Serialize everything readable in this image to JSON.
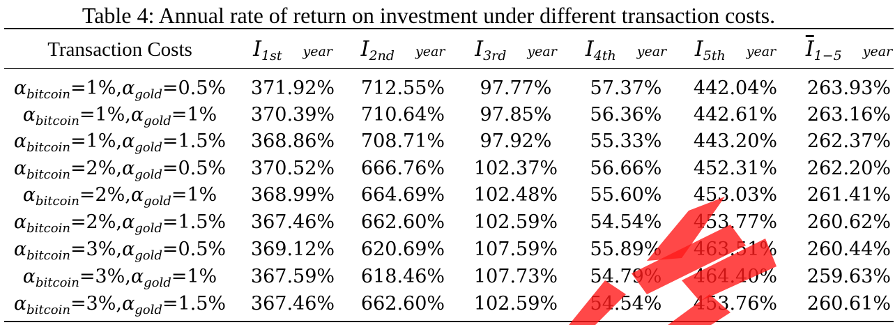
{
  "caption": "Table 4: Annual rate of return on investment under different transaction costs.",
  "header": {
    "col0": "Transaction Costs",
    "cols": [
      {
        "sym": "I",
        "sub": "1st",
        "unit": "year",
        "bar": false
      },
      {
        "sym": "I",
        "sub": "2nd",
        "unit": "year",
        "bar": false
      },
      {
        "sym": "I",
        "sub": "3rd",
        "unit": "year",
        "bar": false
      },
      {
        "sym": "I",
        "sub": "4th",
        "unit": "year",
        "bar": false
      },
      {
        "sym": "I",
        "sub": "5th",
        "unit": "year",
        "bar": false
      },
      {
        "sym": "I",
        "sub": "1−5",
        "unit": "year",
        "bar": true
      }
    ]
  },
  "rows": [
    {
      "a_sym": "α",
      "sub1": "bitcoin",
      "v1": "=1%,",
      "sub2": "gold",
      "v2": "=0.5%",
      "values": [
        "371.92%",
        "712.55%",
        "97.77%",
        "57.37%",
        "442.04%",
        "263.93%"
      ]
    },
    {
      "a_sym": "α",
      "sub1": "bitcoin",
      "v1": "=1%,",
      "sub2": "gold",
      "v2": "=1%",
      "values": [
        "370.39%",
        "710.64%",
        "97.85%",
        "56.36%",
        "442.61%",
        "263.16%"
      ]
    },
    {
      "a_sym": "α",
      "sub1": "bitcoin",
      "v1": "=1%,",
      "sub2": "gold",
      "v2": "=1.5%",
      "values": [
        "368.86%",
        "708.71%",
        "97.92%",
        "55.33%",
        "443.20%",
        "262.37%"
      ]
    },
    {
      "a_sym": "α",
      "sub1": "bitcoin",
      "v1": "=2%,",
      "sub2": "gold",
      "v2": "=0.5%",
      "values": [
        "370.52%",
        "666.76%",
        "102.37%",
        "56.66%",
        "452.31%",
        "262.20%"
      ]
    },
    {
      "a_sym": "α",
      "sub1": "bitcoin",
      "v1": "=2%,",
      "sub2": "gold",
      "v2": "=1%",
      "values": [
        "368.99%",
        "664.69%",
        "102.48%",
        "55.60%",
        "453.03%",
        "261.41%"
      ]
    },
    {
      "a_sym": "α",
      "sub1": "bitcoin",
      "v1": "=2%,",
      "sub2": "gold",
      "v2": "=1.5%",
      "values": [
        "367.46%",
        "662.60%",
        "102.59%",
        "54.54%",
        "453.77%",
        "260.62%"
      ]
    },
    {
      "a_sym": "α",
      "sub1": "bitcoin",
      "v1": "=3%,",
      "sub2": "gold",
      "v2": "=0.5%",
      "values": [
        "369.12%",
        "620.69%",
        "107.59%",
        "55.89%",
        "463.51%",
        "260.44%"
      ]
    },
    {
      "a_sym": "α",
      "sub1": "bitcoin",
      "v1": "=3%,",
      "sub2": "gold",
      "v2": "=1%",
      "values": [
        "367.59%",
        "618.46%",
        "107.73%",
        "54.79%",
        "464.40%",
        "259.63%"
      ]
    },
    {
      "a_sym": "α",
      "sub1": "bitcoin",
      "v1": "=3%,",
      "sub2": "gold",
      "v2": "=1.5%",
      "values": [
        "367.46%",
        "662.60%",
        "102.59%",
        "54.54%",
        "453.76%",
        "260.61%"
      ]
    }
  ],
  "watermark": {
    "color": "#ff1a1a",
    "opacity": 0.8
  }
}
